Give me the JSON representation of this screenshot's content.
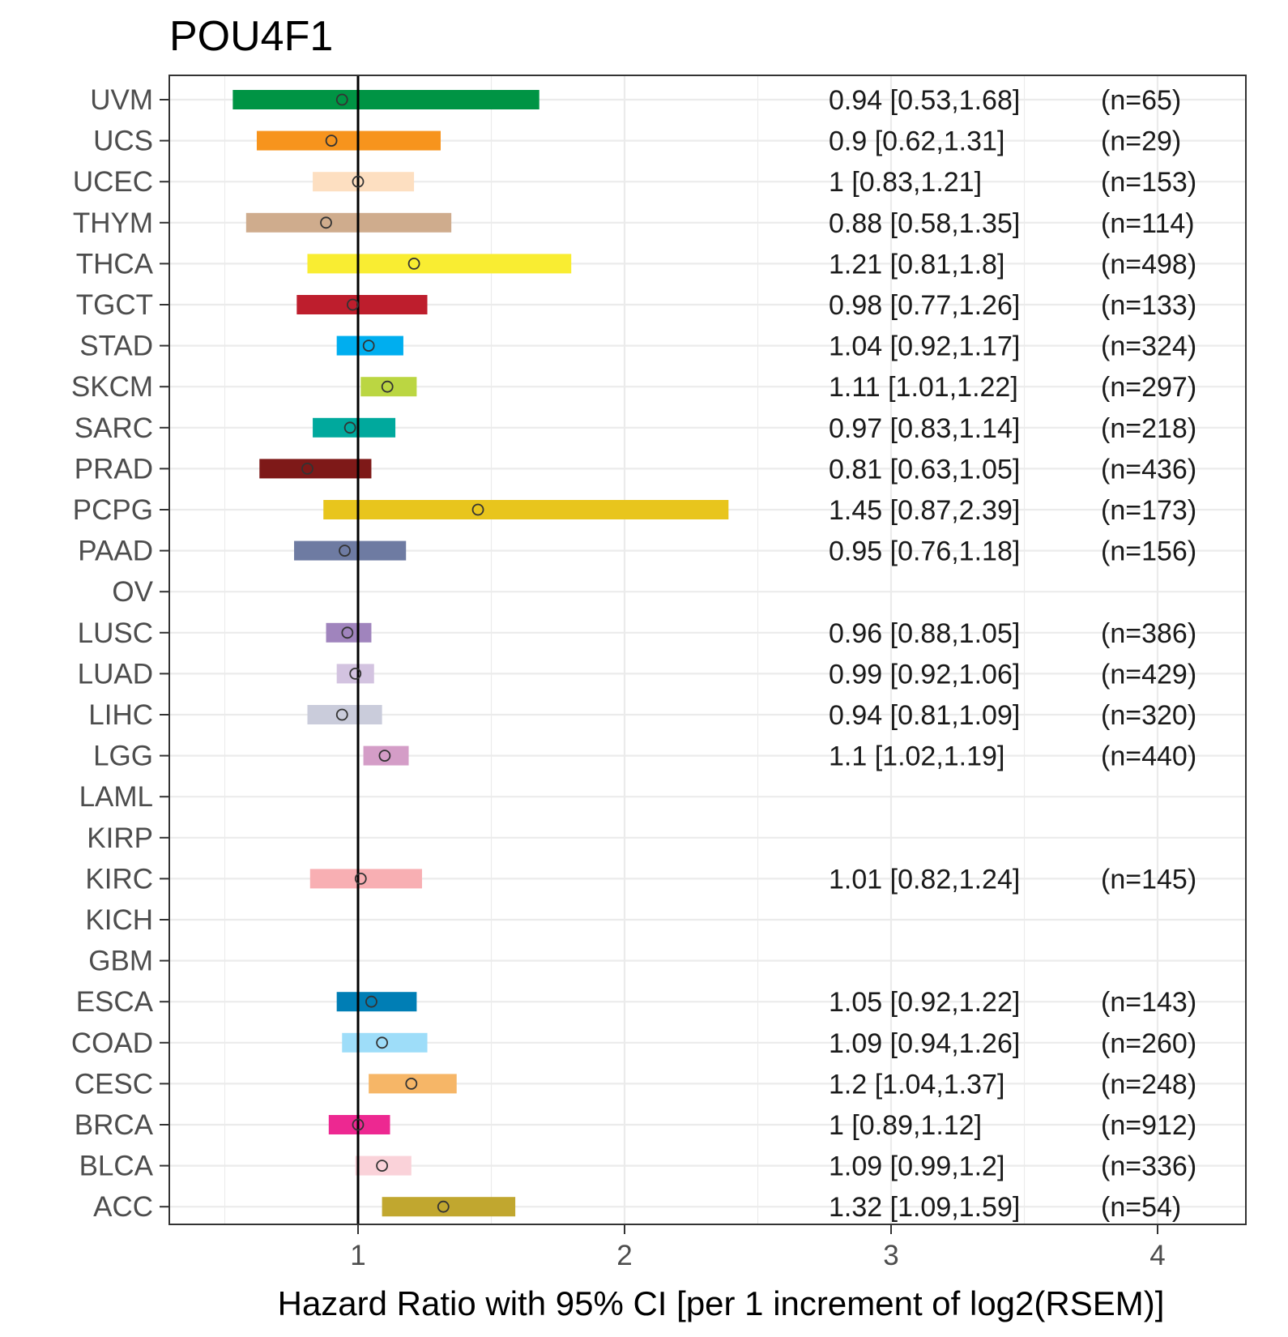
{
  "chart_data": {
    "type": "forest",
    "title": "POU4F1",
    "xlabel": "Hazard Ratio with 95% CI [per 1 increment of log2(RSEM)]",
    "ylabel": "",
    "xlim": [
      0.3,
      4.3
    ],
    "x_ticks": [
      1,
      2,
      3,
      4
    ],
    "x_tick_labels": [
      "1",
      "2",
      "3",
      "4"
    ],
    "reference_line": 1,
    "grid": true,
    "rows": [
      {
        "label": "UVM",
        "hr": 0.94,
        "lo": 0.53,
        "hi": 1.68,
        "hr_text": "0.94 [0.53,1.68]",
        "n_text": "(n=65)",
        "color": "#009444"
      },
      {
        "label": "UCS",
        "hr": 0.9,
        "lo": 0.62,
        "hi": 1.31,
        "hr_text": "0.9 [0.62,1.31]",
        "n_text": "(n=29)",
        "color": "#F7941D"
      },
      {
        "label": "UCEC",
        "hr": 1,
        "lo": 0.83,
        "hi": 1.21,
        "hr_text": "1 [0.83,1.21]",
        "n_text": "(n=153)",
        "color": "#FDDFC1"
      },
      {
        "label": "THYM",
        "hr": 0.88,
        "lo": 0.58,
        "hi": 1.35,
        "hr_text": "0.88 [0.58,1.35]",
        "n_text": "(n=114)",
        "color": "#CFAC8D"
      },
      {
        "label": "THCA",
        "hr": 1.21,
        "lo": 0.81,
        "hi": 1.8,
        "hr_text": "1.21 [0.81,1.8]",
        "n_text": "(n=498)",
        "color": "#F9ED32"
      },
      {
        "label": "TGCT",
        "hr": 0.98,
        "lo": 0.77,
        "hi": 1.26,
        "hr_text": "0.98 [0.77,1.26]",
        "n_text": "(n=133)",
        "color": "#BE1E2D"
      },
      {
        "label": "STAD",
        "hr": 1.04,
        "lo": 0.92,
        "hi": 1.17,
        "hr_text": "1.04 [0.92,1.17]",
        "n_text": "(n=324)",
        "color": "#00AEEF"
      },
      {
        "label": "SKCM",
        "hr": 1.11,
        "lo": 1.01,
        "hi": 1.22,
        "hr_text": "1.11 [1.01,1.22]",
        "n_text": "(n=297)",
        "color": "#BBD642"
      },
      {
        "label": "SARC",
        "hr": 0.97,
        "lo": 0.83,
        "hi": 1.14,
        "hr_text": "0.97 [0.83,1.14]",
        "n_text": "(n=218)",
        "color": "#00A99D"
      },
      {
        "label": "PRAD",
        "hr": 0.81,
        "lo": 0.63,
        "hi": 1.05,
        "hr_text": "0.81 [0.63,1.05]",
        "n_text": "(n=436)",
        "color": "#7E1918"
      },
      {
        "label": "PCPG",
        "hr": 1.45,
        "lo": 0.87,
        "hi": 2.39,
        "hr_text": "1.45 [0.87,2.39]",
        "n_text": "(n=173)",
        "color": "#E8C51D"
      },
      {
        "label": "PAAD",
        "hr": 0.95,
        "lo": 0.76,
        "hi": 1.18,
        "hr_text": "0.95 [0.76,1.18]",
        "n_text": "(n=156)",
        "color": "#6E7BA2"
      },
      {
        "label": "OV",
        "hr": null,
        "lo": null,
        "hi": null,
        "hr_text": "",
        "n_text": "",
        "color": "#D97D25"
      },
      {
        "label": "LUSC",
        "hr": 0.96,
        "lo": 0.88,
        "hi": 1.05,
        "hr_text": "0.96 [0.88,1.05]",
        "n_text": "(n=386)",
        "color": "#A084BD"
      },
      {
        "label": "LUAD",
        "hr": 0.99,
        "lo": 0.92,
        "hi": 1.06,
        "hr_text": "0.99 [0.92,1.06]",
        "n_text": "(n=429)",
        "color": "#D3C3E0"
      },
      {
        "label": "LIHC",
        "hr": 0.94,
        "lo": 0.81,
        "hi": 1.09,
        "hr_text": "0.94 [0.81,1.09]",
        "n_text": "(n=320)",
        "color": "#CACCDB"
      },
      {
        "label": "LGG",
        "hr": 1.1,
        "lo": 1.02,
        "hi": 1.19,
        "hr_text": "1.1 [1.02,1.19]",
        "n_text": "(n=440)",
        "color": "#D49DC7"
      },
      {
        "label": "LAML",
        "hr": null,
        "lo": null,
        "hi": null,
        "hr_text": "",
        "n_text": "",
        "color": "#754C29"
      },
      {
        "label": "KIRP",
        "hr": null,
        "lo": null,
        "hi": null,
        "hr_text": "",
        "n_text": "",
        "color": "#EA7075"
      },
      {
        "label": "KIRC",
        "hr": 1.01,
        "lo": 0.82,
        "hi": 1.24,
        "hr_text": "1.01 [0.82,1.24]",
        "n_text": "(n=145)",
        "color": "#F8AFB3"
      },
      {
        "label": "KICH",
        "hr": null,
        "lo": null,
        "hi": null,
        "hr_text": "",
        "n_text": "",
        "color": "#ED2891"
      },
      {
        "label": "GBM",
        "hr": null,
        "lo": null,
        "hi": null,
        "hr_text": "",
        "n_text": "",
        "color": "#B2509E"
      },
      {
        "label": "ESCA",
        "hr": 1.05,
        "lo": 0.92,
        "hi": 1.22,
        "hr_text": "1.05 [0.92,1.22]",
        "n_text": "(n=143)",
        "color": "#007EB5"
      },
      {
        "label": "COAD",
        "hr": 1.09,
        "lo": 0.94,
        "hi": 1.26,
        "hr_text": "1.09 [0.94,1.26]",
        "n_text": "(n=260)",
        "color": "#9EDDF9"
      },
      {
        "label": "CESC",
        "hr": 1.2,
        "lo": 1.04,
        "hi": 1.37,
        "hr_text": "1.2 [1.04,1.37]",
        "n_text": "(n=248)",
        "color": "#F6B667"
      },
      {
        "label": "BRCA",
        "hr": 1,
        "lo": 0.89,
        "hi": 1.12,
        "hr_text": "1 [0.89,1.12]",
        "n_text": "(n=912)",
        "color": "#ED2891"
      },
      {
        "label": "BLCA",
        "hr": 1.09,
        "lo": 0.99,
        "hi": 1.2,
        "hr_text": "1.09 [0.99,1.2]",
        "n_text": "(n=336)",
        "color": "#FAD2D9"
      },
      {
        "label": "ACC",
        "hr": 1.32,
        "lo": 1.09,
        "hi": 1.59,
        "hr_text": "1.32 [1.09,1.59]",
        "n_text": "(n=54)",
        "color": "#C1A72F"
      }
    ]
  }
}
